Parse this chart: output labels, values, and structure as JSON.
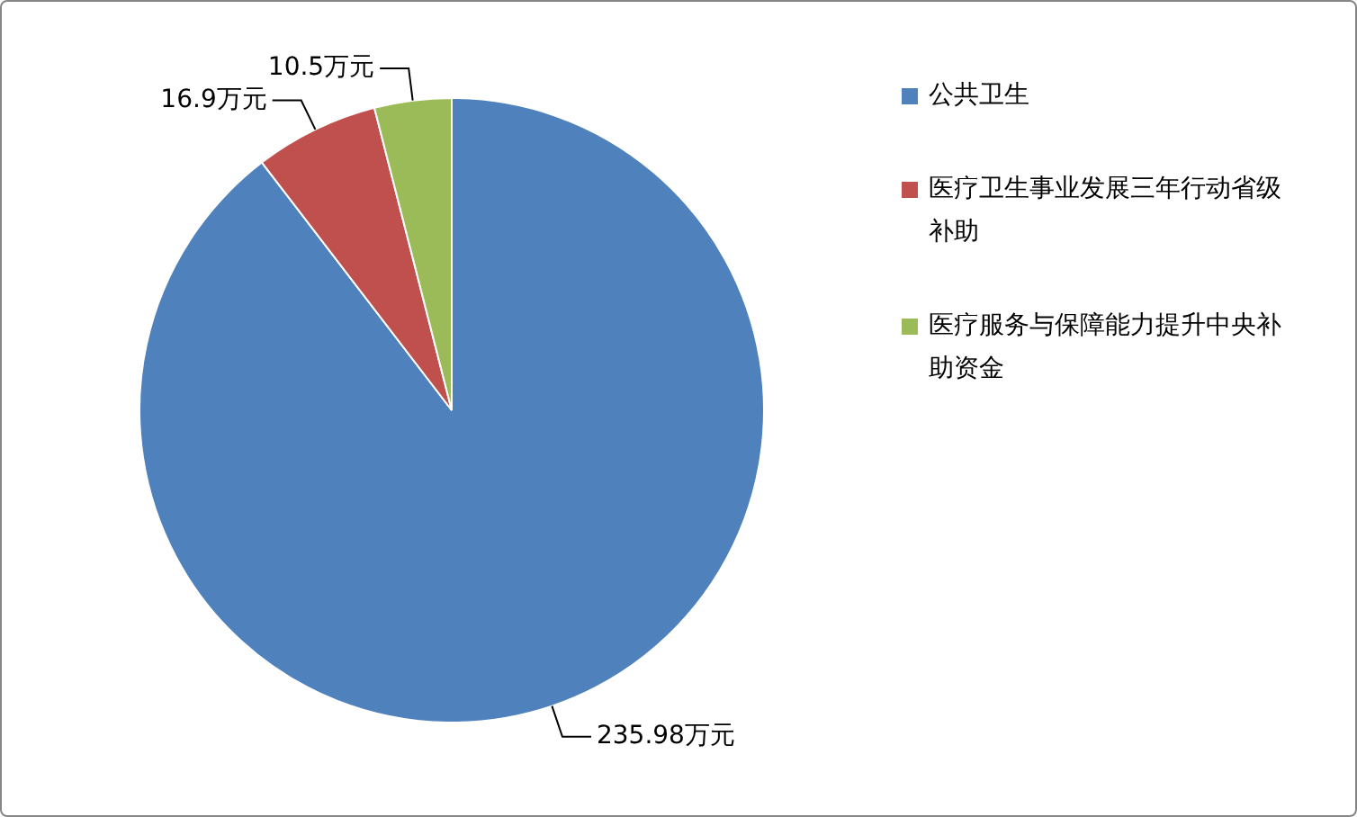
{
  "chart_data": {
    "type": "pie",
    "categories": [
      "公共卫生",
      "医疗卫生事业发展三年行动省级补助",
      "医疗服务与保障能力提升中央补助资金"
    ],
    "values": [
      235.98,
      16.9,
      10.5
    ],
    "colors": [
      "#4f81bd",
      "#c0504d",
      "#9bbb59"
    ],
    "value_labels": [
      "235.98万元",
      "16.9万元",
      "10.5万元"
    ],
    "legend": "right"
  }
}
